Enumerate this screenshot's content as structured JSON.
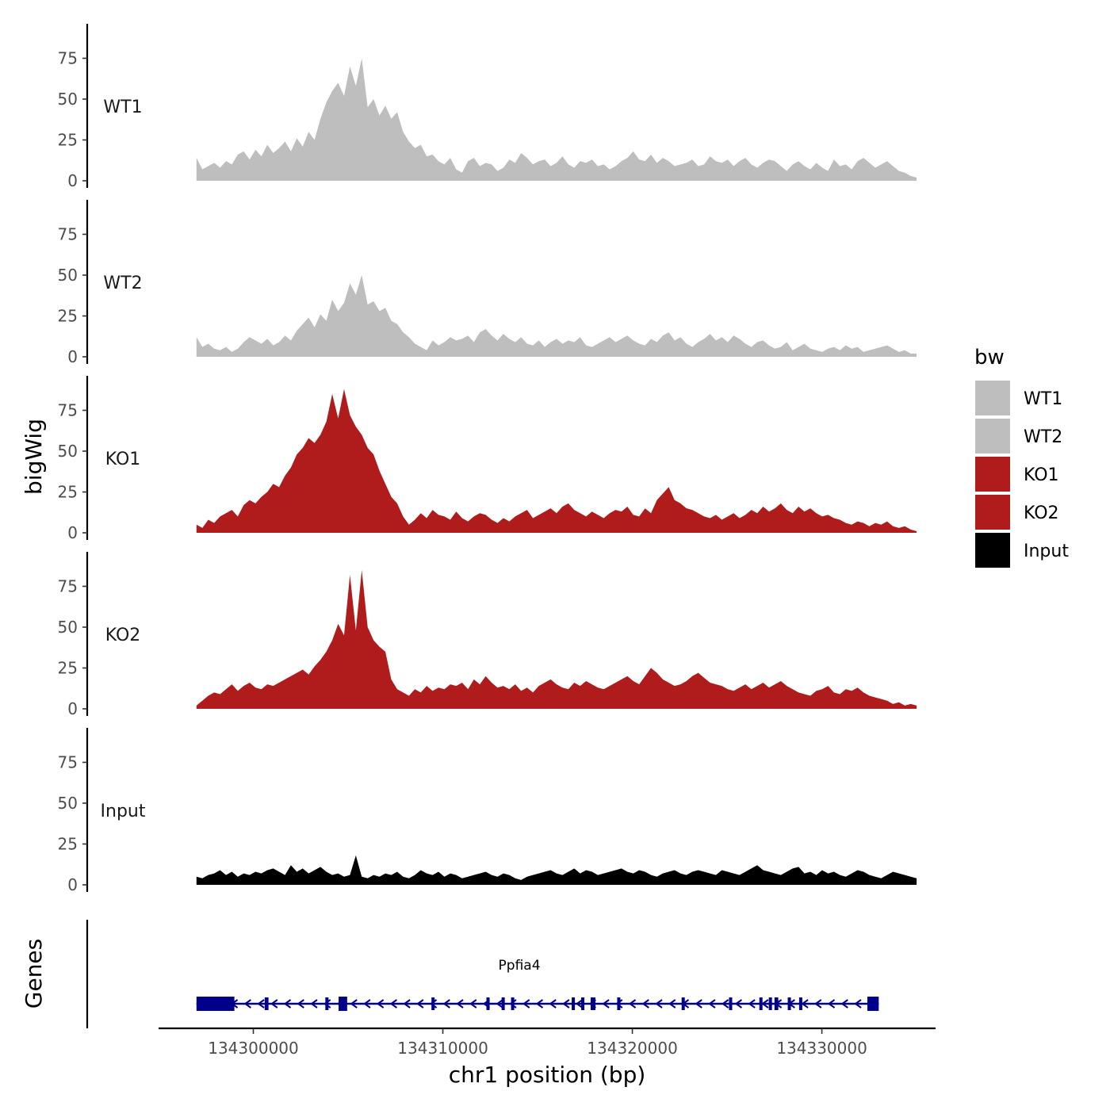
{
  "chart_data": {
    "type": "area",
    "title": "",
    "y_axis_title": "bigWig",
    "x_axis_title": "chr1 position (bp)",
    "genes_axis_title": "Genes",
    "xlim": [
      134295000,
      134336000
    ],
    "x_ticks": [
      134300000,
      134310000,
      134320000,
      134330000
    ],
    "x_tick_labels": [
      "134300000",
      "134310000",
      "134320000",
      "134330000"
    ],
    "ylim": [
      0,
      95
    ],
    "y_ticks": [
      0,
      25,
      50,
      75
    ],
    "y_tick_labels": [
      "0",
      "25",
      "50",
      "75"
    ],
    "x_range_data": [
      134297000,
      134335000
    ],
    "tracks": [
      {
        "name": "WT1",
        "color": "#bebebe",
        "values": [
          14,
          7,
          9,
          11,
          8,
          12,
          10,
          16,
          18,
          13,
          19,
          15,
          22,
          17,
          20,
          24,
          18,
          26,
          21,
          30,
          25,
          38,
          48,
          55,
          60,
          52,
          70,
          58,
          75,
          45,
          50,
          40,
          46,
          38,
          42,
          30,
          24,
          20,
          22,
          15,
          16,
          12,
          10,
          14,
          7,
          5,
          12,
          14,
          9,
          11,
          10,
          6,
          8,
          13,
          11,
          17,
          14,
          10,
          12,
          13,
          9,
          11,
          15,
          10,
          8,
          12,
          11,
          13,
          9,
          10,
          7,
          9,
          12,
          14,
          18,
          13,
          12,
          16,
          11,
          14,
          12,
          9,
          10,
          11,
          13,
          9,
          10,
          15,
          12,
          11,
          13,
          9,
          12,
          14,
          10,
          8,
          11,
          13,
          12,
          9,
          6,
          10,
          12,
          9,
          7,
          11,
          8,
          6,
          13,
          9,
          10,
          7,
          12,
          14,
          11,
          8,
          10,
          12,
          9,
          6,
          5,
          3,
          2
        ]
      },
      {
        "name": "WT2",
        "color": "#bebebe",
        "values": [
          12,
          6,
          8,
          5,
          4,
          6,
          3,
          5,
          9,
          12,
          10,
          8,
          11,
          7,
          9,
          13,
          10,
          16,
          20,
          24,
          18,
          26,
          22,
          35,
          28,
          33,
          45,
          38,
          50,
          32,
          34,
          28,
          30,
          22,
          20,
          15,
          12,
          8,
          6,
          4,
          10,
          7,
          9,
          12,
          10,
          11,
          13,
          9,
          15,
          17,
          13,
          10,
          14,
          11,
          9,
          12,
          8,
          7,
          10,
          6,
          9,
          11,
          8,
          10,
          9,
          12,
          7,
          6,
          8,
          10,
          12,
          9,
          11,
          13,
          10,
          8,
          7,
          11,
          9,
          13,
          15,
          10,
          12,
          8,
          6,
          9,
          11,
          14,
          10,
          12,
          9,
          13,
          11,
          8,
          6,
          9,
          10,
          7,
          5,
          6,
          9,
          4,
          6,
          8,
          5,
          4,
          3,
          5,
          6,
          4,
          7,
          5,
          6,
          3,
          4,
          5,
          6,
          7,
          5,
          3,
          4,
          2,
          2
        ]
      },
      {
        "name": "KO1",
        "color": "#b01c1c",
        "values": [
          5,
          3,
          8,
          6,
          10,
          12,
          14,
          10,
          17,
          20,
          18,
          22,
          25,
          30,
          28,
          35,
          40,
          48,
          52,
          58,
          55,
          60,
          68,
          85,
          70,
          88,
          72,
          65,
          60,
          52,
          48,
          38,
          30,
          22,
          18,
          10,
          5,
          8,
          12,
          9,
          14,
          11,
          10,
          8,
          13,
          9,
          7,
          10,
          12,
          11,
          8,
          6,
          9,
          7,
          10,
          12,
          14,
          9,
          11,
          13,
          15,
          12,
          16,
          18,
          14,
          12,
          10,
          13,
          11,
          9,
          12,
          14,
          13,
          16,
          11,
          10,
          15,
          12,
          20,
          24,
          28,
          20,
          18,
          15,
          14,
          12,
          10,
          9,
          11,
          8,
          10,
          12,
          9,
          11,
          14,
          12,
          16,
          13,
          15,
          18,
          14,
          12,
          16,
          13,
          15,
          12,
          10,
          11,
          9,
          8,
          6,
          5,
          7,
          6,
          4,
          6,
          5,
          7,
          4,
          3,
          4,
          2,
          1
        ]
      },
      {
        "name": "KO2",
        "color": "#b01c1c",
        "values": [
          2,
          5,
          8,
          10,
          9,
          12,
          15,
          11,
          14,
          16,
          13,
          12,
          15,
          14,
          16,
          18,
          20,
          22,
          24,
          21,
          26,
          30,
          35,
          42,
          52,
          45,
          82,
          48,
          85,
          50,
          42,
          38,
          35,
          18,
          12,
          10,
          8,
          12,
          10,
          14,
          11,
          13,
          12,
          15,
          14,
          16,
          12,
          18,
          15,
          20,
          16,
          13,
          14,
          12,
          15,
          11,
          13,
          10,
          14,
          16,
          18,
          15,
          13,
          12,
          16,
          14,
          17,
          15,
          13,
          12,
          14,
          16,
          18,
          20,
          17,
          15,
          20,
          25,
          22,
          18,
          16,
          14,
          15,
          17,
          20,
          22,
          19,
          16,
          15,
          14,
          12,
          11,
          13,
          15,
          12,
          14,
          16,
          13,
          15,
          17,
          14,
          12,
          10,
          9,
          8,
          11,
          12,
          14,
          10,
          9,
          12,
          11,
          13,
          10,
          8,
          7,
          6,
          5,
          3,
          4,
          2,
          3,
          2
        ]
      },
      {
        "name": "Input",
        "color": "#000000",
        "values": [
          5,
          4,
          6,
          7,
          9,
          6,
          8,
          5,
          7,
          6,
          8,
          7,
          9,
          10,
          8,
          6,
          12,
          8,
          10,
          7,
          9,
          11,
          8,
          6,
          7,
          5,
          6,
          18,
          5,
          4,
          6,
          5,
          7,
          6,
          8,
          5,
          4,
          6,
          9,
          7,
          6,
          8,
          5,
          7,
          6,
          4,
          5,
          6,
          7,
          8,
          6,
          5,
          7,
          6,
          4,
          3,
          5,
          6,
          7,
          8,
          9,
          7,
          6,
          8,
          10,
          7,
          9,
          8,
          6,
          7,
          8,
          9,
          10,
          8,
          7,
          9,
          8,
          6,
          5,
          7,
          8,
          9,
          7,
          6,
          8,
          9,
          8,
          7,
          6,
          9,
          8,
          7,
          6,
          8,
          10,
          12,
          9,
          8,
          7,
          6,
          8,
          10,
          11,
          7,
          8,
          6,
          9,
          7,
          8,
          6,
          5,
          7,
          9,
          8,
          6,
          5,
          4,
          6,
          8,
          7,
          6,
          5,
          4
        ]
      }
    ],
    "legend": {
      "title": "bw",
      "position": "right",
      "entries": [
        {
          "label": "WT1",
          "color": "#bebebe"
        },
        {
          "label": "WT2",
          "color": "#bebebe"
        },
        {
          "label": "KO1",
          "color": "#b01c1c"
        },
        {
          "label": "KO2",
          "color": "#b01c1c"
        },
        {
          "label": "Input",
          "color": "#000000"
        }
      ]
    },
    "gene": {
      "name": "Ppfia4",
      "color": "#00008b",
      "strand": "-",
      "start": 134297000,
      "end": 134333000,
      "exons": [
        [
          134297000,
          134299000
        ],
        [
          134300600,
          134300800
        ],
        [
          134303800,
          134303950
        ],
        [
          134304500,
          134304950
        ],
        [
          134309400,
          134309550
        ],
        [
          134312300,
          134312400
        ],
        [
          134313100,
          134313250
        ],
        [
          134313600,
          134313700
        ],
        [
          134316800,
          134316950
        ],
        [
          134317300,
          134317400
        ],
        [
          134317800,
          134318050
        ],
        [
          134319200,
          134319350
        ],
        [
          134322600,
          134322700
        ],
        [
          134325100,
          134325200
        ],
        [
          134326700,
          134326850
        ],
        [
          134327200,
          134327300
        ],
        [
          134327500,
          134327700
        ],
        [
          134328200,
          134328300
        ],
        [
          134328800,
          134328950
        ],
        [
          134332400,
          134333000
        ]
      ]
    }
  }
}
